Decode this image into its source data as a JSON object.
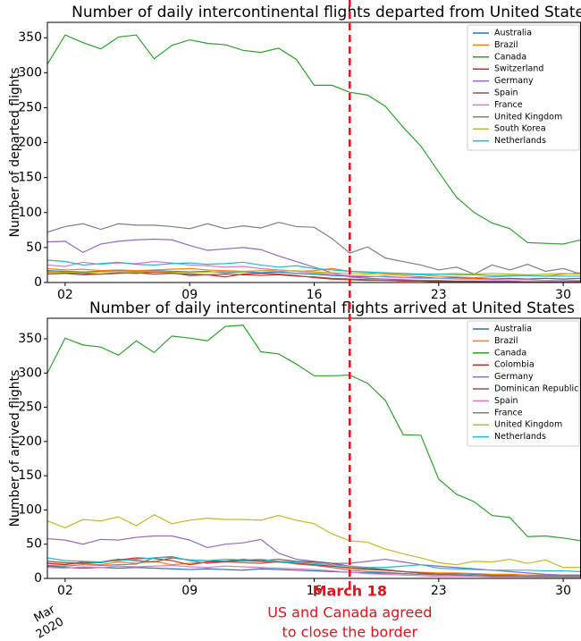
{
  "chart_data": [
    {
      "type": "line",
      "title": "Number of daily intercontinental flights departed from United States",
      "y_label": "Number of departed flights",
      "x": [
        "2020-03-01",
        "2020-03-02",
        "2020-03-03",
        "2020-03-04",
        "2020-03-05",
        "2020-03-06",
        "2020-03-07",
        "2020-03-08",
        "2020-03-09",
        "2020-03-10",
        "2020-03-11",
        "2020-03-12",
        "2020-03-13",
        "2020-03-14",
        "2020-03-15",
        "2020-03-16",
        "2020-03-17",
        "2020-03-18",
        "2020-03-19",
        "2020-03-20",
        "2020-03-21",
        "2020-03-22",
        "2020-03-23",
        "2020-03-24",
        "2020-03-25",
        "2020-03-26",
        "2020-03-27",
        "2020-03-28",
        "2020-03-29",
        "2020-03-30",
        "2020-03-31"
      ],
      "xlim": [
        "2020-03-01",
        "2020-03-31"
      ],
      "xticks": [
        {
          "value": "2020-03-02",
          "label": "02"
        },
        {
          "value": "2020-03-09",
          "label": "09"
        },
        {
          "value": "2020-03-16",
          "label": "16"
        },
        {
          "value": "2020-03-23",
          "label": "23"
        },
        {
          "value": "2020-03-30",
          "label": "30"
        }
      ],
      "ylim": [
        0,
        372
      ],
      "yticks": [
        0,
        50,
        100,
        150,
        200,
        250,
        300,
        350
      ],
      "legend": "upper right",
      "series": [
        {
          "name": "Australia",
          "color": "#1f77b4",
          "values": [
            17,
            16,
            15,
            16,
            17,
            16,
            17,
            16,
            15,
            16,
            14,
            15,
            14,
            15,
            13,
            12,
            10,
            9,
            8,
            9,
            7,
            8,
            6,
            7,
            6,
            5,
            6,
            5,
            6,
            5,
            6
          ]
        },
        {
          "name": "Brazil",
          "color": "#ff7f0e",
          "values": [
            20,
            18,
            19,
            17,
            18,
            17,
            18,
            19,
            20,
            18,
            17,
            16,
            17,
            18,
            16,
            17,
            20,
            16,
            14,
            12,
            10,
            11,
            9,
            8,
            7,
            8,
            9,
            10,
            9,
            12,
            14
          ]
        },
        {
          "name": "Canada",
          "color": "#2ca02c",
          "values": [
            312,
            354,
            343,
            334,
            351,
            354,
            320,
            339,
            347,
            342,
            340,
            332,
            329,
            335,
            319,
            282,
            282,
            272,
            268,
            252,
            222,
            195,
            158,
            122,
            100,
            85,
            77,
            57,
            56,
            55,
            61
          ]
        },
        {
          "name": "Switzerland",
          "color": "#d62728",
          "values": [
            15,
            14,
            13,
            12,
            14,
            13,
            15,
            14,
            10,
            11,
            8,
            12,
            13,
            12,
            10,
            7,
            5,
            4,
            3,
            3,
            2,
            2,
            1,
            1,
            1,
            1,
            1,
            1,
            1,
            1,
            1
          ]
        },
        {
          "name": "Germany",
          "color": "#9467bd",
          "values": [
            58,
            59,
            43,
            55,
            59,
            61,
            62,
            61,
            53,
            46,
            48,
            50,
            47,
            38,
            30,
            22,
            14,
            8,
            6,
            5,
            4,
            3,
            3,
            2,
            2,
            2,
            2,
            1,
            1,
            1,
            2
          ]
        },
        {
          "name": "Spain",
          "color": "#8c564b",
          "values": [
            12,
            13,
            11,
            12,
            13,
            14,
            12,
            13,
            12,
            11,
            12,
            11,
            10,
            11,
            9,
            8,
            6,
            5,
            4,
            3,
            3,
            2,
            2,
            2,
            2,
            1,
            1,
            1,
            1,
            1,
            1
          ]
        },
        {
          "name": "France",
          "color": "#e377c2",
          "values": [
            25,
            23,
            29,
            26,
            28,
            27,
            30,
            28,
            25,
            24,
            22,
            23,
            20,
            18,
            16,
            14,
            12,
            10,
            9,
            8,
            7,
            6,
            6,
            5,
            5,
            4,
            4,
            4,
            3,
            3,
            3
          ]
        },
        {
          "name": "United Kingdom",
          "color": "#7f7f7f",
          "values": [
            72,
            80,
            84,
            76,
            84,
            82,
            82,
            80,
            77,
            84,
            77,
            81,
            78,
            86,
            80,
            79,
            63,
            42,
            51,
            35,
            30,
            25,
            18,
            22,
            12,
            25,
            18,
            26,
            16,
            20,
            12
          ]
        },
        {
          "name": "South Korea",
          "color": "#bcbd22",
          "values": [
            14,
            15,
            14,
            15,
            16,
            15,
            16,
            15,
            14,
            15,
            16,
            15,
            17,
            16,
            17,
            15,
            14,
            13,
            12,
            13,
            12,
            11,
            12,
            13,
            12,
            13,
            12,
            11,
            12,
            13,
            12
          ]
        },
        {
          "name": "Netherlands",
          "color": "#17becf",
          "values": [
            32,
            30,
            25,
            27,
            29,
            26,
            25,
            27,
            28,
            26,
            27,
            29,
            25,
            22,
            24,
            20,
            18,
            16,
            15,
            14,
            13,
            12,
            12,
            11,
            11,
            10,
            10,
            10,
            9,
            9,
            9
          ]
        }
      ]
    },
    {
      "type": "line",
      "title": "Number of daily intercontinental flights arrived at United States",
      "y_label": "Number of arrived flights",
      "x": [
        "2020-03-01",
        "2020-03-02",
        "2020-03-03",
        "2020-03-04",
        "2020-03-05",
        "2020-03-06",
        "2020-03-07",
        "2020-03-08",
        "2020-03-09",
        "2020-03-10",
        "2020-03-11",
        "2020-03-12",
        "2020-03-13",
        "2020-03-14",
        "2020-03-15",
        "2020-03-16",
        "2020-03-17",
        "2020-03-18",
        "2020-03-19",
        "2020-03-20",
        "2020-03-21",
        "2020-03-22",
        "2020-03-23",
        "2020-03-24",
        "2020-03-25",
        "2020-03-26",
        "2020-03-27",
        "2020-03-28",
        "2020-03-29",
        "2020-03-30",
        "2020-03-31"
      ],
      "xlim": [
        "2020-03-01",
        "2020-03-31"
      ],
      "xticks": [
        {
          "value": "2020-03-02",
          "label": "02"
        },
        {
          "value": "2020-03-09",
          "label": "09"
        },
        {
          "value": "2020-03-16",
          "label": "16"
        },
        {
          "value": "2020-03-23",
          "label": "23"
        },
        {
          "value": "2020-03-30",
          "label": "30"
        }
      ],
      "x_period_label": [
        "Mar",
        "2020"
      ],
      "ylim": [
        0,
        380
      ],
      "yticks": [
        0,
        50,
        100,
        150,
        200,
        250,
        300,
        350
      ],
      "legend": "upper right",
      "series": [
        {
          "name": "Australia",
          "color": "#1f77b4",
          "values": [
            18,
            16,
            15,
            16,
            15,
            16,
            15,
            14,
            13,
            14,
            13,
            12,
            14,
            13,
            12,
            11,
            10,
            9,
            8,
            8,
            7,
            6,
            6,
            7,
            6,
            5,
            5,
            5,
            4,
            4,
            4
          ]
        },
        {
          "name": "Brazil",
          "color": "#ff7f0e",
          "values": [
            22,
            21,
            22,
            20,
            24,
            22,
            25,
            20,
            22,
            24,
            25,
            23,
            22,
            24,
            22,
            20,
            18,
            16,
            14,
            12,
            10,
            9,
            8,
            8,
            7,
            6,
            6,
            5,
            5,
            5,
            5
          ]
        },
        {
          "name": "Canada",
          "color": "#2ca02c",
          "values": [
            300,
            351,
            341,
            338,
            326,
            347,
            330,
            354,
            351,
            347,
            368,
            370,
            331,
            328,
            313,
            296,
            296,
            297,
            285,
            260,
            210,
            209,
            145,
            123,
            112,
            92,
            89,
            61,
            62,
            59,
            55
          ]
        },
        {
          "name": "Colombia",
          "color": "#d62728",
          "values": [
            22,
            20,
            24,
            23,
            27,
            30,
            29,
            26,
            20,
            24,
            25,
            26,
            25,
            24,
            22,
            20,
            18,
            15,
            13,
            12,
            10,
            8,
            6,
            5,
            4,
            4,
            3,
            3,
            3,
            2,
            2
          ]
        },
        {
          "name": "Germany",
          "color": "#9467bd",
          "values": [
            58,
            56,
            50,
            57,
            56,
            60,
            62,
            62,
            56,
            45,
            50,
            52,
            57,
            37,
            28,
            25,
            22,
            22,
            25,
            28,
            24,
            20,
            18,
            16,
            14,
            12,
            10,
            8,
            6,
            5,
            5
          ]
        },
        {
          "name": "Dominican Republic",
          "color": "#8c564b",
          "values": [
            25,
            23,
            22,
            24,
            28,
            26,
            24,
            30,
            27,
            26,
            25,
            28,
            26,
            28,
            25,
            24,
            22,
            18,
            15,
            13,
            10,
            8,
            6,
            5,
            4,
            3,
            3,
            3,
            2,
            2,
            2
          ]
        },
        {
          "name": "Spain",
          "color": "#e377c2",
          "values": [
            16,
            15,
            17,
            16,
            18,
            17,
            18,
            19,
            17,
            16,
            18,
            17,
            16,
            15,
            14,
            13,
            11,
            9,
            7,
            6,
            5,
            4,
            3,
            3,
            3,
            2,
            2,
            2,
            2,
            2,
            2
          ]
        },
        {
          "name": "France",
          "color": "#7f7f7f",
          "values": [
            19,
            18,
            20,
            19,
            20,
            21,
            30,
            32,
            26,
            22,
            24,
            23,
            22,
            25,
            21,
            19,
            16,
            12,
            10,
            9,
            7,
            6,
            5,
            5,
            4,
            4,
            4,
            3,
            3,
            3,
            3
          ]
        },
        {
          "name": "United Kingdom",
          "color": "#bcbd22",
          "values": [
            84,
            74,
            86,
            84,
            90,
            77,
            93,
            80,
            85,
            88,
            86,
            86,
            85,
            92,
            85,
            80,
            65,
            55,
            53,
            43,
            36,
            30,
            23,
            20,
            25,
            24,
            28,
            22,
            27,
            16,
            16
          ]
        },
        {
          "name": "Netherlands",
          "color": "#17becf",
          "values": [
            30,
            26,
            25,
            24,
            26,
            28,
            30,
            31,
            27,
            26,
            28,
            27,
            28,
            25,
            24,
            22,
            20,
            18,
            16,
            16,
            18,
            20,
            15,
            14,
            13,
            12,
            12,
            12,
            11,
            11,
            10
          ]
        }
      ]
    }
  ],
  "annotation": {
    "x": "2020-03-18",
    "title": "March 18",
    "lines": [
      "US and Canada agreed",
      "to close the border"
    ]
  }
}
